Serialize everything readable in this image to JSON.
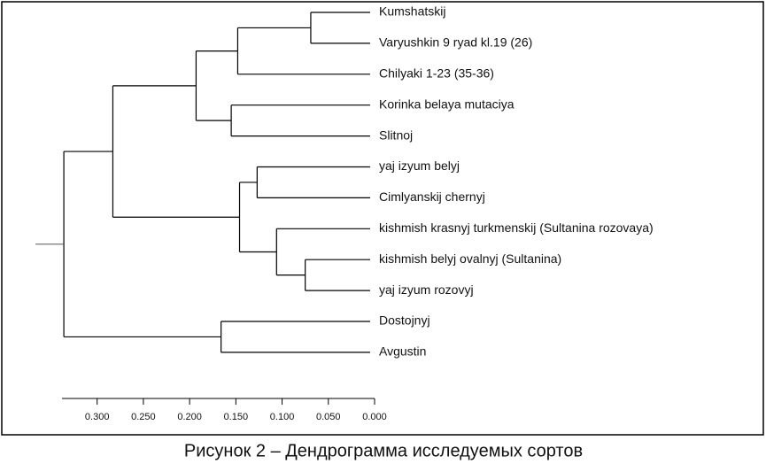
{
  "chart_data": {
    "type": "dendrogram",
    "caption": "Рисунок 2 – Дендрограмма исследуемых сортов",
    "xlim": [
      0.338,
      0
    ],
    "xticks": [
      {
        "value": 0.3,
        "label": "0.300"
      },
      {
        "value": 0.25,
        "label": "0.250"
      },
      {
        "value": 0.2,
        "label": "0.200"
      },
      {
        "value": 0.15,
        "label": "0.150"
      },
      {
        "value": 0.1,
        "label": "0.100"
      },
      {
        "value": 0.05,
        "label": "0.050"
      },
      {
        "value": 0,
        "label": "0.000"
      }
    ],
    "color": "#000000",
    "tree": {
      "height": 0.336,
      "children": [
        {
          "height": 0.283,
          "children": [
            {
              "height": 0.193,
              "children": [
                {
                  "height": 0.148,
                  "children": [
                    {
                      "height": 0.069,
                      "children": [
                        {
                          "label": "Kumshatskij"
                        },
                        {
                          "label": "Varyushkin 9 ryad kl.19 (26)"
                        }
                      ]
                    },
                    {
                      "label": "Chilyaki 1-23 (35-36)"
                    }
                  ]
                },
                {
                  "height": 0.155,
                  "children": [
                    {
                      "label": "Korinka belaya mutaciya"
                    },
                    {
                      "label": "Slitnoj"
                    }
                  ]
                }
              ]
            },
            {
              "height": 0.146,
              "children": [
                {
                  "height": 0.127,
                  "children": [
                    {
                      "label": "yaj izyum belyj"
                    },
                    {
                      "label": "Cimlyanskij chernyj"
                    }
                  ]
                },
                {
                  "height": 0.106,
                  "children": [
                    {
                      "label": "kishmish krasnyj turkmenskij (Sultanina rozovaya)"
                    },
                    {
                      "height": 0.075,
                      "children": [
                        {
                          "label": "kishmish belyj ovalnyj (Sultanina)"
                        },
                        {
                          "label": "yaj izyum rozovyj"
                        }
                      ]
                    }
                  ]
                }
              ]
            }
          ]
        },
        {
          "height": 0.166,
          "children": [
            {
              "label": "Dostojnyj"
            },
            {
              "label": "Avgustin"
            }
          ]
        }
      ]
    }
  }
}
